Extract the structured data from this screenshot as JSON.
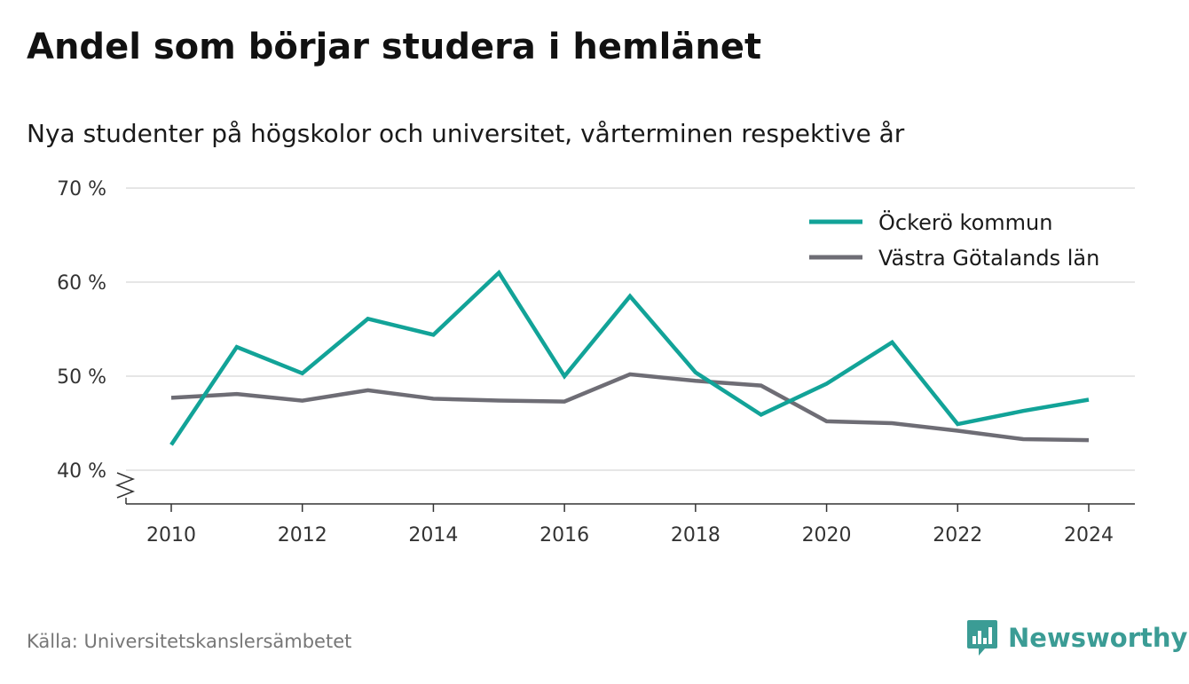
{
  "chart_data": {
    "type": "line",
    "title": "Andel som börjar studera i hemlänet",
    "subtitle": "Nya studenter på högskolor och universitet, vårterminen respektive år",
    "x": [
      2010,
      2011,
      2012,
      2013,
      2014,
      2015,
      2016,
      2017,
      2018,
      2019,
      2020,
      2021,
      2022,
      2023,
      2024
    ],
    "series": [
      {
        "name": "Öckerö kommun",
        "color": "#12a398",
        "values": [
          42.7,
          53.1,
          50.3,
          56.1,
          54.4,
          61.0,
          50.0,
          58.5,
          50.4,
          45.9,
          49.2,
          53.6,
          44.9,
          46.3,
          47.5
        ]
      },
      {
        "name": "Västra Götalands län",
        "color": "#6e6d75",
        "values": [
          47.7,
          48.1,
          47.4,
          48.5,
          47.6,
          47.4,
          47.3,
          50.2,
          49.5,
          49.0,
          45.2,
          45.0,
          44.2,
          43.3,
          43.2
        ]
      }
    ],
    "ylim": [
      40,
      70
    ],
    "yticks": [
      40,
      50,
      60,
      70
    ],
    "ytick_labels": [
      "40 %",
      "50 %",
      "60 %",
      "70 %"
    ],
    "xticks": [
      2010,
      2012,
      2014,
      2016,
      2018,
      2020,
      2022,
      2024
    ],
    "xtick_labels": [
      "2010",
      "2012",
      "2014",
      "2016",
      "2018",
      "2020",
      "2022",
      "2024"
    ],
    "grid": true,
    "legend_position": "top-right",
    "axis_break": true,
    "xlabel": "",
    "ylabel": ""
  },
  "footer": {
    "source": "Källa: Universitetskanslersämbetet",
    "brand": "Newsworthy",
    "brand_icon": "bar-chart-speech-bubble-icon"
  }
}
